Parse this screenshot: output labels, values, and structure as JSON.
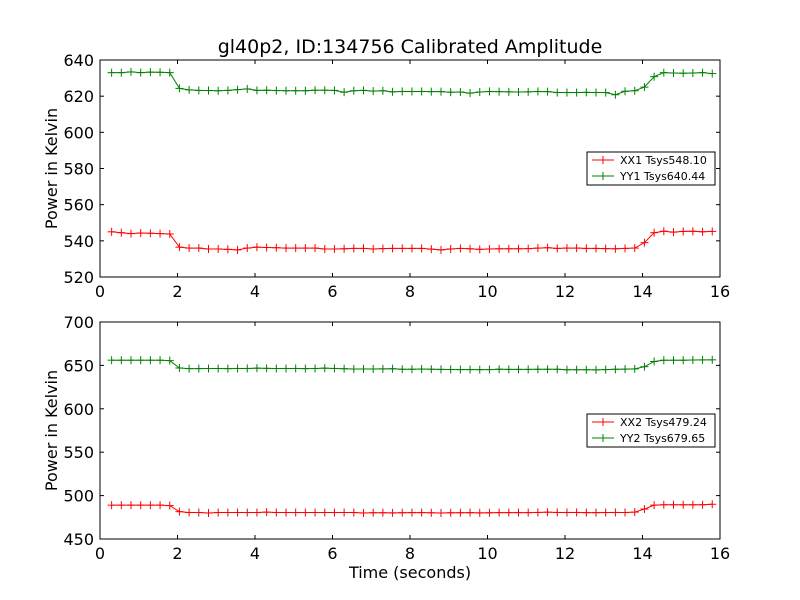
{
  "figure": {
    "title": "gl40p2, ID:134756 Calibrated Amplitude",
    "xlabel": "Time (seconds)"
  },
  "chart_data": [
    {
      "type": "line",
      "title": "gl40p2, ID:134756 Calibrated Amplitude",
      "xlabel": "",
      "ylabel": "Power in Kelvin",
      "xlim": [
        0,
        16
      ],
      "ylim": [
        520,
        640
      ],
      "xticks": [
        "0",
        "2",
        "4",
        "6",
        "8",
        "10",
        "12",
        "14",
        "16"
      ],
      "yticks": [
        "520",
        "540",
        "560",
        "580",
        "600",
        "620",
        "640"
      ],
      "grid": false,
      "legend_position": "right",
      "x": [
        0.3,
        0.55,
        0.8,
        1.05,
        1.3,
        1.55,
        1.8,
        2.05,
        2.3,
        2.55,
        2.8,
        3.05,
        3.3,
        3.55,
        3.8,
        4.05,
        4.3,
        4.55,
        4.8,
        5.05,
        5.3,
        5.55,
        5.8,
        6.05,
        6.3,
        6.55,
        6.8,
        7.05,
        7.3,
        7.55,
        7.8,
        8.05,
        8.3,
        8.55,
        8.8,
        9.05,
        9.3,
        9.55,
        9.8,
        10.05,
        10.3,
        10.55,
        10.8,
        11.05,
        11.3,
        11.55,
        11.8,
        12.05,
        12.3,
        12.55,
        12.8,
        13.05,
        13.3,
        13.55,
        13.8,
        14.05,
        14.3,
        14.55,
        14.8,
        15.05,
        15.3,
        15.55,
        15.8
      ],
      "series": [
        {
          "name": "XX1 Tsys548.10",
          "color": "#ff0000",
          "values": [
            545,
            544.5,
            544,
            544.3,
            544.2,
            544,
            543.8,
            536.5,
            536,
            536,
            535.5,
            535.5,
            535.3,
            535,
            536,
            536.5,
            536.3,
            536.2,
            536,
            536,
            536,
            536,
            535.5,
            535.5,
            535.6,
            535.8,
            535.8,
            535.5,
            535.7,
            535.8,
            535.8,
            535.8,
            535.8,
            535.4,
            535,
            535.5,
            535.8,
            535.6,
            535.3,
            535.5,
            535.6,
            535.6,
            535.6,
            535.7,
            536,
            536.2,
            535.8,
            536,
            536,
            535.8,
            535.8,
            535.7,
            535.6,
            535.8,
            536,
            539,
            544.5,
            545.3,
            544.8,
            545.2,
            545.3,
            545,
            545.2
          ]
        },
        {
          "name": "YY1 Tsys640.44",
          "color": "#008000",
          "values": [
            633,
            633,
            633.4,
            633,
            633.3,
            633.2,
            633,
            624.3,
            623.5,
            623.2,
            623.1,
            623,
            623.2,
            623.6,
            624,
            623.2,
            623.3,
            623.1,
            623,
            623,
            623,
            623.3,
            623.3,
            623.2,
            622.2,
            623,
            623.2,
            622.8,
            623,
            622.4,
            622.6,
            622.6,
            622.6,
            622.5,
            622.5,
            622.2,
            622.3,
            621.7,
            622.3,
            622.6,
            622.5,
            622.4,
            622.3,
            622.4,
            622.6,
            622.5,
            622,
            622,
            622,
            622.1,
            622,
            622,
            620.8,
            622.7,
            623,
            625,
            630.8,
            633,
            632.8,
            632.7,
            632.8,
            633,
            632.5
          ]
        }
      ]
    },
    {
      "type": "line",
      "title": "",
      "xlabel": "Time (seconds)",
      "ylabel": "Power in Kelvin",
      "xlim": [
        0,
        16
      ],
      "ylim": [
        450,
        700
      ],
      "xticks": [
        "0",
        "2",
        "4",
        "6",
        "8",
        "10",
        "12",
        "14",
        "16"
      ],
      "yticks": [
        "450",
        "500",
        "550",
        "600",
        "650",
        "700"
      ],
      "grid": false,
      "legend_position": "right",
      "x": [
        0.3,
        0.55,
        0.8,
        1.05,
        1.3,
        1.55,
        1.8,
        2.05,
        2.3,
        2.55,
        2.8,
        3.05,
        3.3,
        3.55,
        3.8,
        4.05,
        4.3,
        4.55,
        4.8,
        5.05,
        5.3,
        5.55,
        5.8,
        6.05,
        6.3,
        6.55,
        6.8,
        7.05,
        7.3,
        7.55,
        7.8,
        8.05,
        8.3,
        8.55,
        8.8,
        9.05,
        9.3,
        9.55,
        9.8,
        10.05,
        10.3,
        10.55,
        10.8,
        11.05,
        11.3,
        11.55,
        11.8,
        12.05,
        12.3,
        12.55,
        12.8,
        13.05,
        13.3,
        13.55,
        13.8,
        14.05,
        14.3,
        14.55,
        14.8,
        15.05,
        15.3,
        15.55,
        15.8
      ],
      "series": [
        {
          "name": "XX2 Tsys479.24",
          "color": "#ff0000",
          "values": [
            489,
            489,
            489,
            489,
            489,
            489,
            488.5,
            481.5,
            480.5,
            480.5,
            480,
            480.5,
            480.5,
            480.5,
            480.5,
            480.5,
            481,
            480.5,
            480.5,
            480.5,
            480.5,
            480.5,
            480.5,
            480.5,
            480.5,
            480.5,
            480,
            480.3,
            480.3,
            480.1,
            480.3,
            480.4,
            480.4,
            480.2,
            480,
            480.2,
            480.3,
            480.4,
            480.1,
            480.2,
            480.4,
            480.4,
            480.4,
            480.4,
            480.6,
            480.9,
            480.6,
            480.6,
            480.6,
            480.4,
            480.4,
            480.5,
            480.6,
            480.5,
            481,
            484.5,
            489,
            489.4,
            489.4,
            489.4,
            489.4,
            489.4,
            490
          ]
        },
        {
          "name": "YY2 Tsys679.65",
          "color": "#008000",
          "values": [
            656,
            656,
            656,
            656,
            656,
            656,
            655.5,
            647,
            646.3,
            646.3,
            646.4,
            646.4,
            646.3,
            646.5,
            646.5,
            646.8,
            646.6,
            646.4,
            646.5,
            646.5,
            646.3,
            646.4,
            646.8,
            646.5,
            646.2,
            645.8,
            645.9,
            645.9,
            646,
            646.2,
            645.6,
            645.6,
            645.8,
            645.6,
            645.4,
            645.3,
            645.2,
            645.2,
            645.1,
            645.2,
            645.6,
            645.4,
            645.4,
            645.4,
            645.5,
            645.5,
            645.5,
            645,
            645,
            645,
            644.9,
            645.2,
            645.5,
            645.7,
            646,
            648.5,
            654.5,
            656,
            656,
            656,
            656.2,
            656.3,
            656.4
          ]
        }
      ]
    }
  ]
}
